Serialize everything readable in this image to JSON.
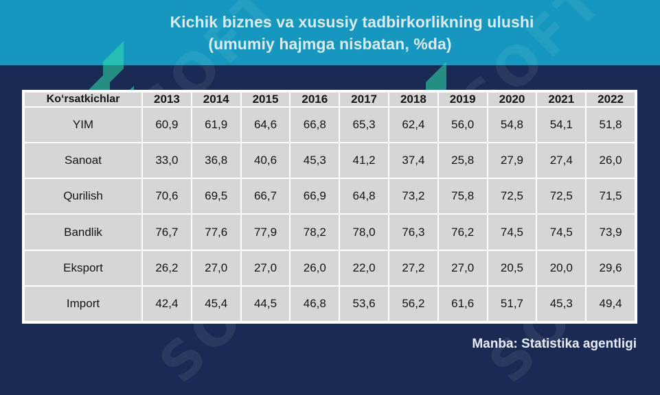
{
  "header": {
    "title_line1": "Kichik biznes va xususiy tadbirkorlikning ulushi",
    "title_line2": "(umumiy hajmga nisbatan, %da)"
  },
  "table": {
    "corner": "Koʻrsatkichlar",
    "years": [
      "2013",
      "2014",
      "2015",
      "2016",
      "2017",
      "2018",
      "2019",
      "2020",
      "2021",
      "2022"
    ],
    "rows": [
      {
        "label": "YIM",
        "values": [
          "60,9",
          "61,9",
          "64,6",
          "66,8",
          "65,3",
          "62,4",
          "56,0",
          "54,8",
          "54,1",
          "51,8"
        ]
      },
      {
        "label": "Sanoat",
        "values": [
          "33,0",
          "36,8",
          "40,6",
          "45,3",
          "41,2",
          "37,4",
          "25,8",
          "27,9",
          "27,4",
          "26,0"
        ]
      },
      {
        "label": "Qurilish",
        "values": [
          "70,6",
          "69,5",
          "66,7",
          "66,9",
          "64,8",
          "73,2",
          "75,8",
          "72,5",
          "72,5",
          "71,5"
        ]
      },
      {
        "label": "Bandlik",
        "values": [
          "76,7",
          "77,6",
          "77,9",
          "78,2",
          "78,0",
          "76,3",
          "76,2",
          "74,5",
          "74,5",
          "73,9"
        ]
      },
      {
        "label": "Eksport",
        "values": [
          "26,2",
          "27,0",
          "27,0",
          "26,0",
          "22,0",
          "27,2",
          "27,0",
          "20,5",
          "20,0",
          "29,6"
        ]
      },
      {
        "label": "Import",
        "values": [
          "42,4",
          "45,4",
          "44,5",
          "46,8",
          "53,6",
          "56,2",
          "61,6",
          "51,7",
          "45,3",
          "49,4"
        ]
      }
    ]
  },
  "footer": {
    "source": "Manba: Statistika agentligi"
  },
  "colors": {
    "header_bg": "#1597bf",
    "page_bg": "#1b2a55",
    "cell_bg": "#d6d6d6",
    "watermark": "#2ee0a8"
  }
}
